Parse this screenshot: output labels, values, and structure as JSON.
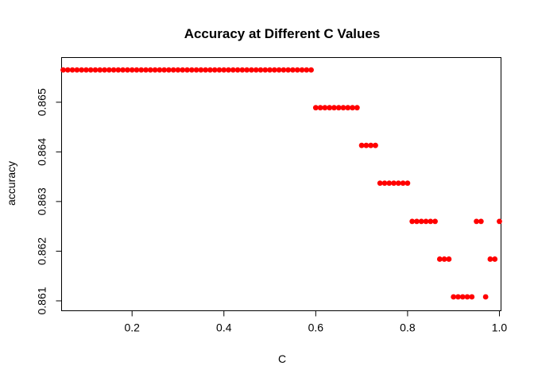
{
  "chart_data": {
    "type": "scatter",
    "title": "Accuracy at Different C Values",
    "xlabel": "C",
    "ylabel": "accuracy",
    "xlim": [
      0.0465,
      1.0035
    ],
    "ylim": [
      0.8608,
      0.8659
    ],
    "x_ticks": [
      0.2,
      0.4,
      0.6,
      0.8,
      1.0
    ],
    "x_tick_labels": [
      "0.2",
      "0.4",
      "0.6",
      "0.8",
      "1.0"
    ],
    "y_ticks": [
      0.861,
      0.862,
      0.863,
      0.864,
      0.865
    ],
    "y_tick_labels": [
      "0.861",
      "0.862",
      "0.863",
      "0.864",
      "0.865"
    ],
    "point_color": "#ff0000",
    "grid": false,
    "legend": "none",
    "series": [
      {
        "x": [
          0.05,
          0.06,
          0.07,
          0.08,
          0.09,
          0.1,
          0.11,
          0.12,
          0.13,
          0.14,
          0.15,
          0.16,
          0.17,
          0.18,
          0.19,
          0.2,
          0.21,
          0.22,
          0.23,
          0.24,
          0.25,
          0.26,
          0.27,
          0.28,
          0.29,
          0.3,
          0.31,
          0.32,
          0.33,
          0.34,
          0.35,
          0.36,
          0.37,
          0.38,
          0.39,
          0.4,
          0.41,
          0.42,
          0.43,
          0.44,
          0.45,
          0.46,
          0.47,
          0.48,
          0.49,
          0.5,
          0.51,
          0.52,
          0.53,
          0.54,
          0.55,
          0.56,
          0.57,
          0.58,
          0.59,
          0.6,
          0.61,
          0.62,
          0.63,
          0.64,
          0.65,
          0.66,
          0.67,
          0.68,
          0.69,
          0.7,
          0.71,
          0.72,
          0.73,
          0.74,
          0.75,
          0.76,
          0.77,
          0.78,
          0.79,
          0.8,
          0.81,
          0.82,
          0.83,
          0.84,
          0.85,
          0.86,
          0.95,
          0.96,
          1.0,
          0.87,
          0.88,
          0.89,
          0.98,
          0.99,
          0.9,
          0.91,
          0.92,
          0.93,
          0.94,
          0.97
        ],
        "y": [
          0.86565,
          0.86565,
          0.86565,
          0.86565,
          0.86565,
          0.86565,
          0.86565,
          0.86565,
          0.86565,
          0.86565,
          0.86565,
          0.86565,
          0.86565,
          0.86565,
          0.86565,
          0.86565,
          0.86565,
          0.86565,
          0.86565,
          0.86565,
          0.86565,
          0.86565,
          0.86565,
          0.86565,
          0.86565,
          0.86565,
          0.86565,
          0.86565,
          0.86565,
          0.86565,
          0.86565,
          0.86565,
          0.86565,
          0.86565,
          0.86565,
          0.86565,
          0.86565,
          0.86565,
          0.86565,
          0.86565,
          0.86565,
          0.86565,
          0.86565,
          0.86565,
          0.86565,
          0.86565,
          0.86565,
          0.86565,
          0.86565,
          0.86565,
          0.86565,
          0.86565,
          0.86565,
          0.86565,
          0.86565,
          0.86489,
          0.86489,
          0.86489,
          0.86489,
          0.86489,
          0.86489,
          0.86489,
          0.86489,
          0.86489,
          0.86489,
          0.86413,
          0.86413,
          0.86413,
          0.86413,
          0.86337,
          0.86337,
          0.86337,
          0.86337,
          0.86337,
          0.86337,
          0.86337,
          0.8626,
          0.8626,
          0.8626,
          0.8626,
          0.8626,
          0.8626,
          0.8626,
          0.8626,
          0.8626,
          0.86184,
          0.86184,
          0.86184,
          0.86184,
          0.86184,
          0.86108,
          0.86108,
          0.86108,
          0.86108,
          0.86108,
          0.86108
        ]
      }
    ]
  }
}
